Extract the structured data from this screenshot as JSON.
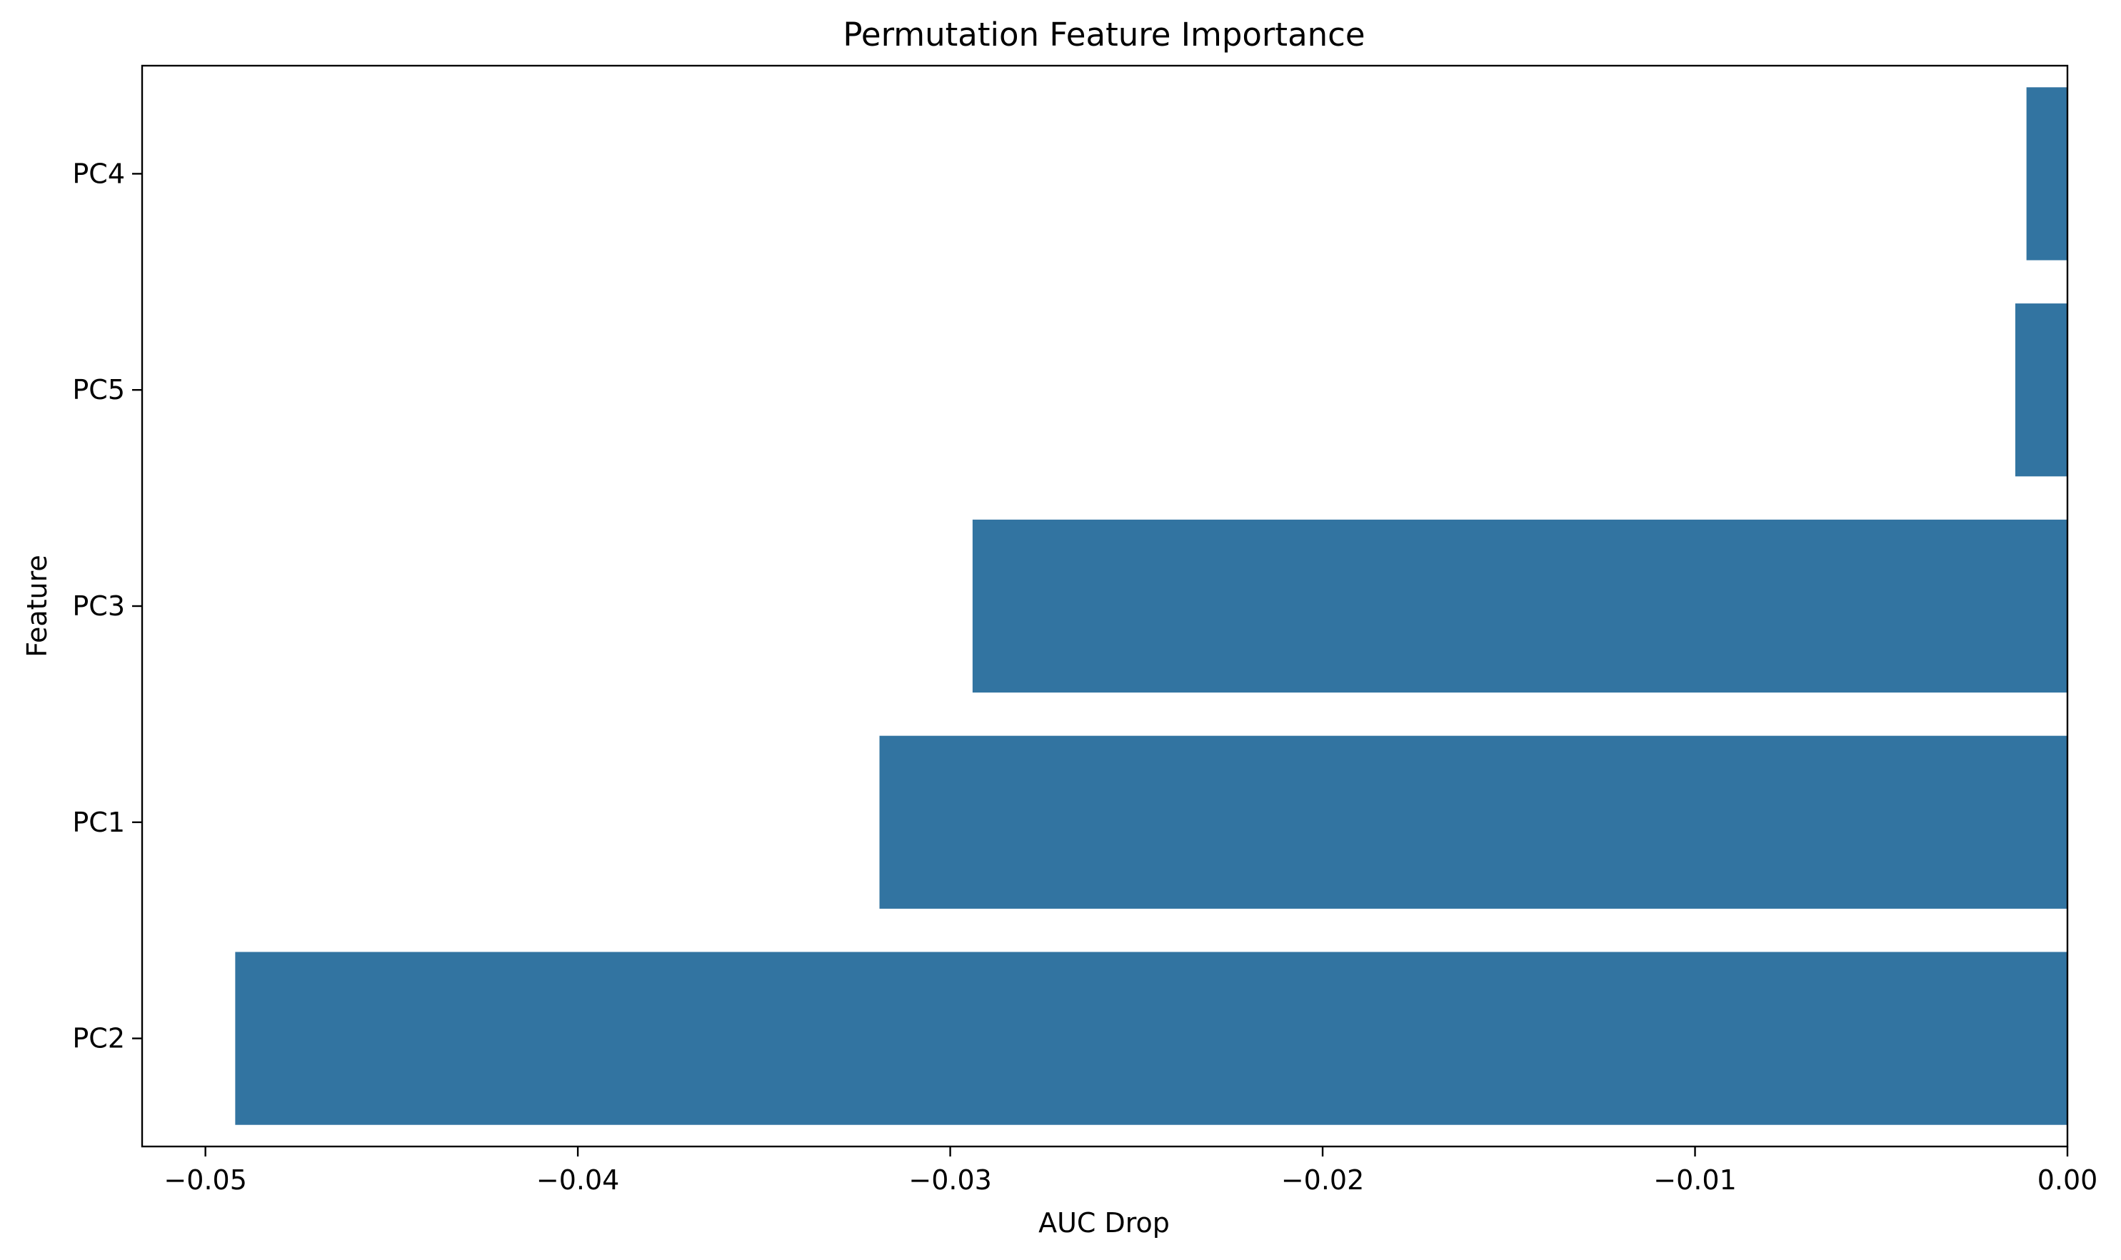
{
  "chart_data": {
    "type": "bar",
    "orientation": "horizontal",
    "title": "Permutation Feature Importance",
    "xlabel": "AUC Drop",
    "ylabel": "Feature",
    "categories": [
      "PC4",
      "PC5",
      "PC3",
      "PC1",
      "PC2"
    ],
    "values": [
      -0.0011,
      -0.0014,
      -0.0294,
      -0.0319,
      -0.0492
    ],
    "xlim": [
      -0.0517,
      0.0
    ],
    "xticks": [
      -0.05,
      -0.04,
      -0.03,
      -0.02,
      -0.01,
      0.0
    ],
    "xtick_labels": [
      "−0.05",
      "−0.04",
      "−0.03",
      "−0.02",
      "−0.01",
      "0.00"
    ],
    "grid": false,
    "legend": "none",
    "bar_color": "#3274a1"
  }
}
